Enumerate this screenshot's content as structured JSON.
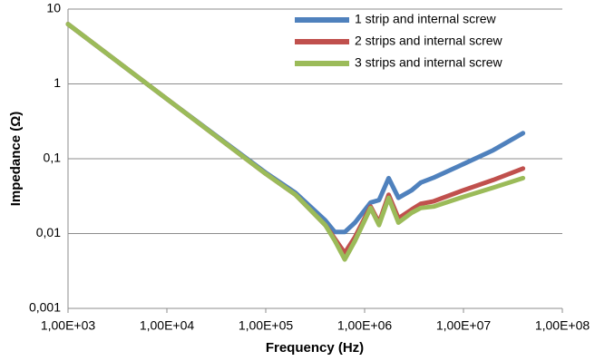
{
  "chart_data": {
    "type": "line",
    "xlabel": "Frequency (Hz)",
    "ylabel": "Impedance (Ω)",
    "x": [
      1000,
      10000,
      100000,
      200000,
      400000,
      500000,
      630000,
      800000,
      1150000,
      1400000,
      1750000,
      2200000,
      3000000,
      3700000,
      5000000,
      10000000,
      20000000,
      40000000
    ],
    "series": [
      {
        "name": "1 strip and internal screw",
        "color": "#4f81bd",
        "values": [
          6.3,
          0.63,
          0.065,
          0.035,
          0.015,
          0.0105,
          0.0105,
          0.014,
          0.026,
          0.028,
          0.055,
          0.03,
          0.038,
          0.048,
          0.056,
          0.085,
          0.13,
          0.22
        ]
      },
      {
        "name": "2 strips and internal screw",
        "color": "#c0504d",
        "values": [
          6.3,
          0.63,
          0.063,
          0.033,
          0.013,
          0.0085,
          0.0055,
          0.009,
          0.023,
          0.014,
          0.033,
          0.016,
          0.021,
          0.025,
          0.027,
          0.038,
          0.052,
          0.074
        ]
      },
      {
        "name": "3 strips and internal screw",
        "color": "#9bbb59",
        "values": [
          6.3,
          0.63,
          0.063,
          0.033,
          0.013,
          0.008,
          0.0045,
          0.008,
          0.022,
          0.013,
          0.03,
          0.014,
          0.019,
          0.022,
          0.023,
          0.031,
          0.041,
          0.055
        ]
      }
    ],
    "xlog": true,
    "ylog": true,
    "xlim": [
      1000,
      100000000
    ],
    "xticks": [
      {
        "value": 1000,
        "label": "1,00E+03"
      },
      {
        "value": 10000,
        "label": "1,00E+04"
      },
      {
        "value": 100000,
        "label": "1,00E+05"
      },
      {
        "value": 1000000,
        "label": "1,00E+06"
      },
      {
        "value": 10000000,
        "label": "1,00E+07"
      },
      {
        "value": 100000000,
        "label": "1,00E+08"
      }
    ],
    "ylim": [
      0.001,
      10
    ],
    "yticks": [
      {
        "value": 0.001,
        "label": "0,001"
      },
      {
        "value": 0.01,
        "label": "0,01"
      },
      {
        "value": 0.1,
        "label": "0,1"
      },
      1,
      10
    ],
    "grid": true,
    "legend": "upper right"
  }
}
